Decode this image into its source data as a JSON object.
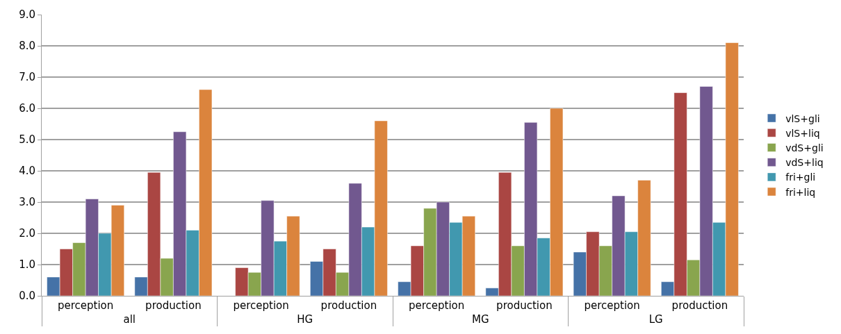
{
  "chart_data": {
    "type": "bar",
    "categories": [
      "perception",
      "production",
      "perception",
      "production",
      "perception",
      "production",
      "perception",
      "production"
    ],
    "annotations": [
      "all",
      "HG",
      "MG",
      "LG"
    ],
    "series": [
      {
        "name": "vlS+gli",
        "color": "#4572a7",
        "values": [
          0.6,
          0.6,
          null,
          1.1,
          0.45,
          0.25,
          1.4,
          0.45
        ]
      },
      {
        "name": "vlS+liq",
        "color": "#aa4643",
        "values": [
          1.5,
          3.95,
          0.9,
          1.5,
          1.6,
          3.95,
          2.05,
          6.5
        ]
      },
      {
        "name": "vdS+gli",
        "color": "#89a54e",
        "values": [
          1.7,
          1.2,
          0.75,
          0.75,
          2.8,
          1.6,
          1.6,
          1.15
        ]
      },
      {
        "name": "vdS+liq",
        "color": "#71588f",
        "values": [
          3.1,
          5.25,
          3.05,
          3.6,
          3.0,
          5.55,
          3.2,
          6.7
        ]
      },
      {
        "name": "fri+gli",
        "color": "#4198af",
        "values": [
          2.0,
          2.1,
          1.75,
          2.2,
          2.35,
          1.85,
          2.05,
          2.35
        ]
      },
      {
        "name": "fri+liq",
        "color": "#db843d",
        "values": [
          2.9,
          6.6,
          2.55,
          5.6,
          2.55,
          6.0,
          3.7,
          8.1
        ]
      }
    ],
    "ylim": [
      0,
      9
    ],
    "yticks": [
      {
        "value": 0,
        "label": "0.0"
      },
      {
        "value": 1,
        "label": "1.0"
      },
      {
        "value": 2,
        "label": "2.0"
      },
      {
        "value": 3,
        "label": "3.0"
      },
      {
        "value": 4,
        "label": "4.0"
      },
      {
        "value": 5,
        "label": "5.0"
      },
      {
        "value": 6,
        "label": "6.0"
      },
      {
        "value": 7,
        "label": "7.0"
      },
      {
        "value": 8,
        "label": "8.0"
      },
      {
        "value": 9,
        "label": "9.0"
      }
    ],
    "grid": "y",
    "legend": "right"
  }
}
